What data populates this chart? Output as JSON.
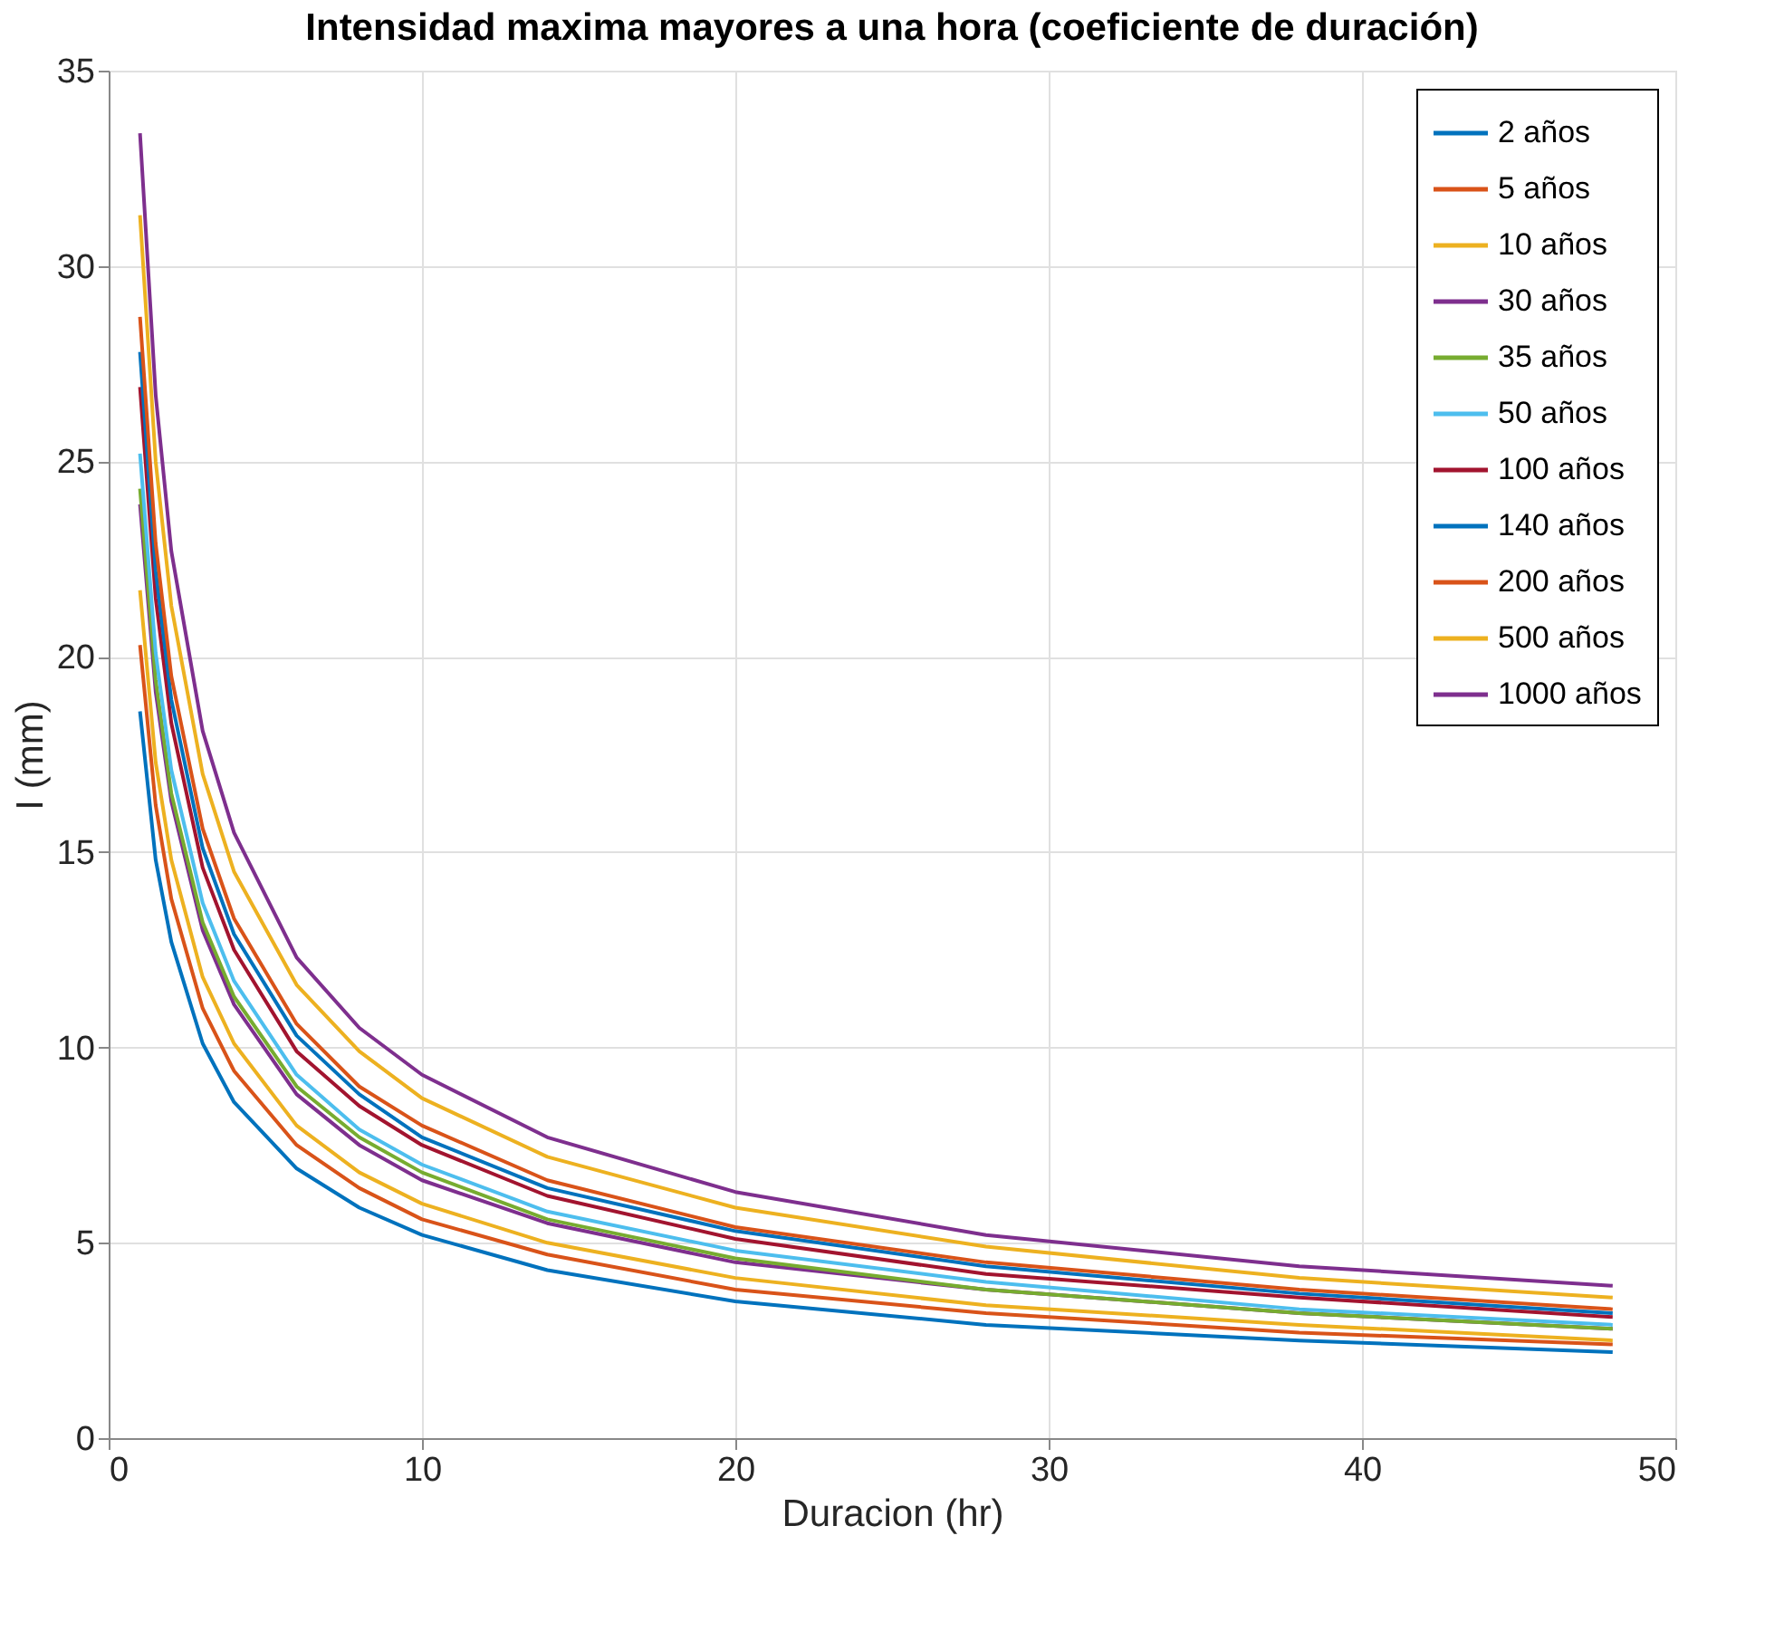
{
  "chart_data": {
    "type": "line",
    "title": "Intensidad maxima mayores a una hora (coeficiente de duración)",
    "xlabel": "Duracion (hr)",
    "ylabel": "I (mm)",
    "x": [
      1,
      1.5,
      2,
      3,
      4,
      6,
      8,
      10,
      14,
      20,
      28,
      38,
      48
    ],
    "xlim": [
      0,
      50
    ],
    "xticks": [
      0,
      10,
      20,
      30,
      40,
      50
    ],
    "ylim": [
      0,
      35
    ],
    "yticks": [
      0,
      5,
      10,
      15,
      20,
      25,
      30,
      35
    ],
    "grid": true,
    "legend": "top right",
    "line_style": "solid",
    "marker": "none",
    "series": [
      {
        "name": "2 años",
        "color": "#0072bd",
        "values": [
          18.6,
          14.8,
          12.7,
          10.1,
          8.6,
          6.9,
          5.9,
          5.2,
          4.3,
          3.5,
          2.9,
          2.5,
          2.2
        ]
      },
      {
        "name": "5 años",
        "color": "#d95319",
        "values": [
          20.3,
          16.2,
          13.8,
          11.0,
          9.4,
          7.5,
          6.4,
          5.6,
          4.7,
          3.8,
          3.2,
          2.7,
          2.4
        ]
      },
      {
        "name": "10 años",
        "color": "#edb120",
        "values": [
          21.7,
          17.3,
          14.8,
          11.8,
          10.1,
          8.0,
          6.8,
          6.0,
          5.0,
          4.1,
          3.4,
          2.9,
          2.5
        ]
      },
      {
        "name": "30 años",
        "color": "#7e2f8e",
        "values": [
          23.9,
          19.1,
          16.3,
          13.0,
          11.1,
          8.8,
          7.5,
          6.6,
          5.5,
          4.5,
          3.8,
          3.2,
          2.8
        ]
      },
      {
        "name": "35 años",
        "color": "#77ac30",
        "values": [
          24.3,
          19.4,
          16.5,
          13.2,
          11.3,
          9.0,
          7.7,
          6.8,
          5.6,
          4.6,
          3.8,
          3.2,
          2.8
        ]
      },
      {
        "name": "50 años",
        "color": "#4dbeee",
        "values": [
          25.2,
          20.1,
          17.1,
          13.7,
          11.7,
          9.3,
          7.9,
          7.0,
          5.8,
          4.8,
          4.0,
          3.3,
          2.9
        ]
      },
      {
        "name": "100 años",
        "color": "#a2142f",
        "values": [
          26.9,
          21.5,
          18.3,
          14.6,
          12.5,
          9.9,
          8.5,
          7.5,
          6.2,
          5.1,
          4.2,
          3.6,
          3.1
        ]
      },
      {
        "name": "140 años",
        "color": "#0072bd",
        "values": [
          27.8,
          22.2,
          18.9,
          15.1,
          12.9,
          10.3,
          8.8,
          7.7,
          6.4,
          5.3,
          4.4,
          3.7,
          3.2
        ]
      },
      {
        "name": "200 años",
        "color": "#d95319",
        "values": [
          28.7,
          22.9,
          19.5,
          15.6,
          13.3,
          10.6,
          9.0,
          8.0,
          6.6,
          5.4,
          4.5,
          3.8,
          3.3
        ]
      },
      {
        "name": "500 años",
        "color": "#edb120",
        "values": [
          31.3,
          25.0,
          21.3,
          17.0,
          14.5,
          11.6,
          9.9,
          8.7,
          7.2,
          5.9,
          4.9,
          4.1,
          3.6
        ]
      },
      {
        "name": "1000 años",
        "color": "#7e2f8e",
        "values": [
          33.4,
          26.7,
          22.7,
          18.1,
          15.5,
          12.3,
          10.5,
          9.3,
          7.7,
          6.3,
          5.2,
          4.4,
          3.9
        ]
      }
    ]
  }
}
